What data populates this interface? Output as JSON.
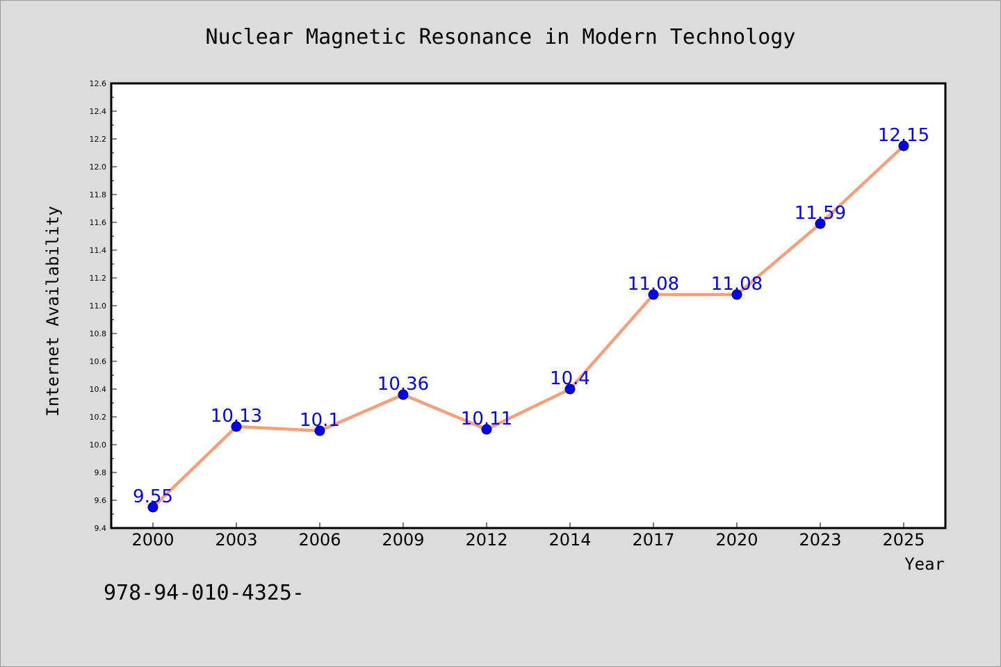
{
  "chart_data": {
    "type": "line",
    "title": "Nuclear Magnetic Resonance in Modern Technology",
    "xlabel": "Year",
    "ylabel": "Internet Availability",
    "categories": [
      "2000",
      "2003",
      "2006",
      "2009",
      "2012",
      "2014",
      "2017",
      "2020",
      "2023",
      "2025"
    ],
    "series": [
      {
        "values": [
          9.55,
          10.13,
          10.1,
          10.36,
          10.11,
          10.4,
          11.08,
          11.08,
          11.59,
          12.15
        ],
        "data_labels": [
          "9.55",
          "10.13",
          "10.1",
          "10.36",
          "10.11",
          "10.4",
          "11.08",
          "11.08",
          "11.59",
          "12.15"
        ]
      }
    ],
    "ylim": [
      9.4,
      12.6
    ],
    "yticks": [
      "9.4",
      "9.6",
      "9.8",
      "10.0",
      "10.2",
      "10.4",
      "10.6",
      "10.8",
      "11.0",
      "11.2",
      "11.4",
      "11.6",
      "11.8",
      "12.0",
      "12.2",
      "12.4",
      "12.6"
    ],
    "grid": false,
    "legend": "none",
    "colors": {
      "line": "#f4a07a",
      "marker": "#0000ff",
      "data_label": "#0000ff",
      "plot_background": "#ffffff",
      "figure_background": "#dcdcdc"
    }
  },
  "footer_text": "978-94-010-4325-"
}
